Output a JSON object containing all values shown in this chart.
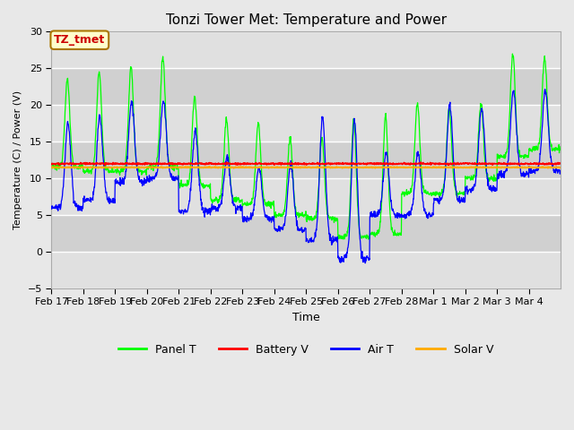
{
  "title": "Tonzi Tower Met: Temperature and Power",
  "xlabel": "Time",
  "ylabel": "Temperature (C) / Power (V)",
  "ylim": [
    -5,
    30
  ],
  "yticks": [
    -5,
    0,
    5,
    10,
    15,
    20,
    25,
    30
  ],
  "annotation_text": "TZ_tmet",
  "annotation_bg": "#ffffcc",
  "annotation_border": "#aa7700",
  "annotation_text_color": "#cc0000",
  "fig_bg": "#e8e8e8",
  "plot_bg": "#d8d8d8",
  "legend_entries": [
    "Panel T",
    "Battery V",
    "Air T",
    "Solar V"
  ],
  "legend_colors": [
    "#00ff00",
    "#ff0000",
    "#0000ff",
    "#ffaa00"
  ],
  "battery_v_value": 12.0,
  "solar_v_value": 11.5,
  "day_labels": [
    "Feb 17",
    "Feb 18",
    "Feb 19",
    "Feb 20",
    "Feb 21",
    "Feb 22",
    "Feb 23",
    "Feb 24",
    "Feb 25",
    "Feb 26",
    "Feb 27",
    "Feb 28",
    "Mar 1",
    "Mar 2",
    "Mar 3",
    "Mar 4"
  ],
  "panel_peak_heights": [
    23.5,
    24.5,
    25.3,
    26.5,
    21.2,
    18.0,
    17.5,
    15.5,
    15.5,
    18.0,
    18.5,
    20.2,
    19.5,
    20.0,
    27.0,
    26.5
  ],
  "panel_night_lows": [
    11.5,
    11.0,
    11.0,
    11.5,
    9.0,
    7.0,
    6.5,
    5.0,
    4.5,
    2.0,
    2.5,
    8.0,
    8.0,
    10.0,
    13.0,
    14.0
  ],
  "air_peak_heights": [
    17.5,
    18.5,
    20.5,
    20.5,
    16.5,
    13.0,
    11.5,
    12.0,
    18.5,
    18.0,
    13.5,
    13.5,
    20.0,
    19.5,
    22.0,
    22.0
  ],
  "air_night_lows": [
    6.0,
    7.0,
    9.5,
    10.0,
    5.5,
    6.0,
    4.5,
    3.0,
    1.5,
    -1.0,
    5.0,
    5.0,
    7.0,
    8.5,
    10.5,
    11.0
  ]
}
